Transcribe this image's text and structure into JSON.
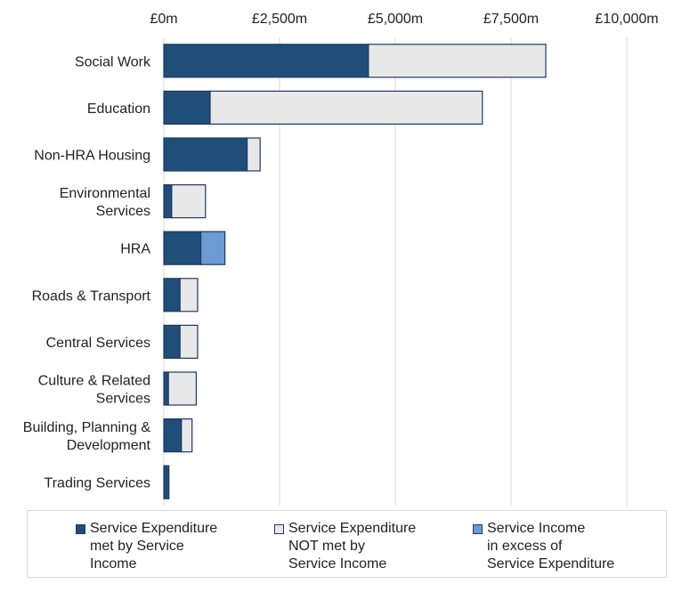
{
  "chart_data": {
    "type": "bar",
    "orientation": "horizontal",
    "stacked": true,
    "categories": [
      "Social Work",
      "Education",
      "Non-HRA Housing",
      "Environmental\nServices",
      "HRA",
      "Roads & Transport",
      "Central Services",
      "Culture & Related\nServices",
      "Building, Planning &\nDevelopment",
      "Trading Services"
    ],
    "series": [
      {
        "name": "Service Expenditure\nmet by Service\nIncome",
        "color": "#1f4e79",
        "values": [
          4420,
          1000,
          1800,
          170,
          800,
          350,
          350,
          100,
          380,
          110
        ]
      },
      {
        "name": "Service Expenditure\nNOT met by\nService Income",
        "color": "#e8e8e8",
        "values": [
          3830,
          5880,
          280,
          730,
          0,
          380,
          380,
          600,
          230,
          0
        ]
      },
      {
        "name": "Service Income\nin excess of\nService Expenditure",
        "color": "#6b9bd2",
        "values": [
          0,
          0,
          0,
          0,
          520,
          0,
          0,
          0,
          0,
          0
        ]
      }
    ],
    "xlim": [
      0,
      10000
    ],
    "xticks": [
      0,
      2500,
      5000,
      7500,
      10000
    ],
    "xtick_labels": [
      "£0m",
      "£2,500m",
      "£5,000m",
      "£7,500m",
      "£10,000m"
    ],
    "axis_position": "top",
    "grid": true,
    "legend_position": "bottom",
    "title": "",
    "xlabel": "",
    "ylabel": ""
  }
}
